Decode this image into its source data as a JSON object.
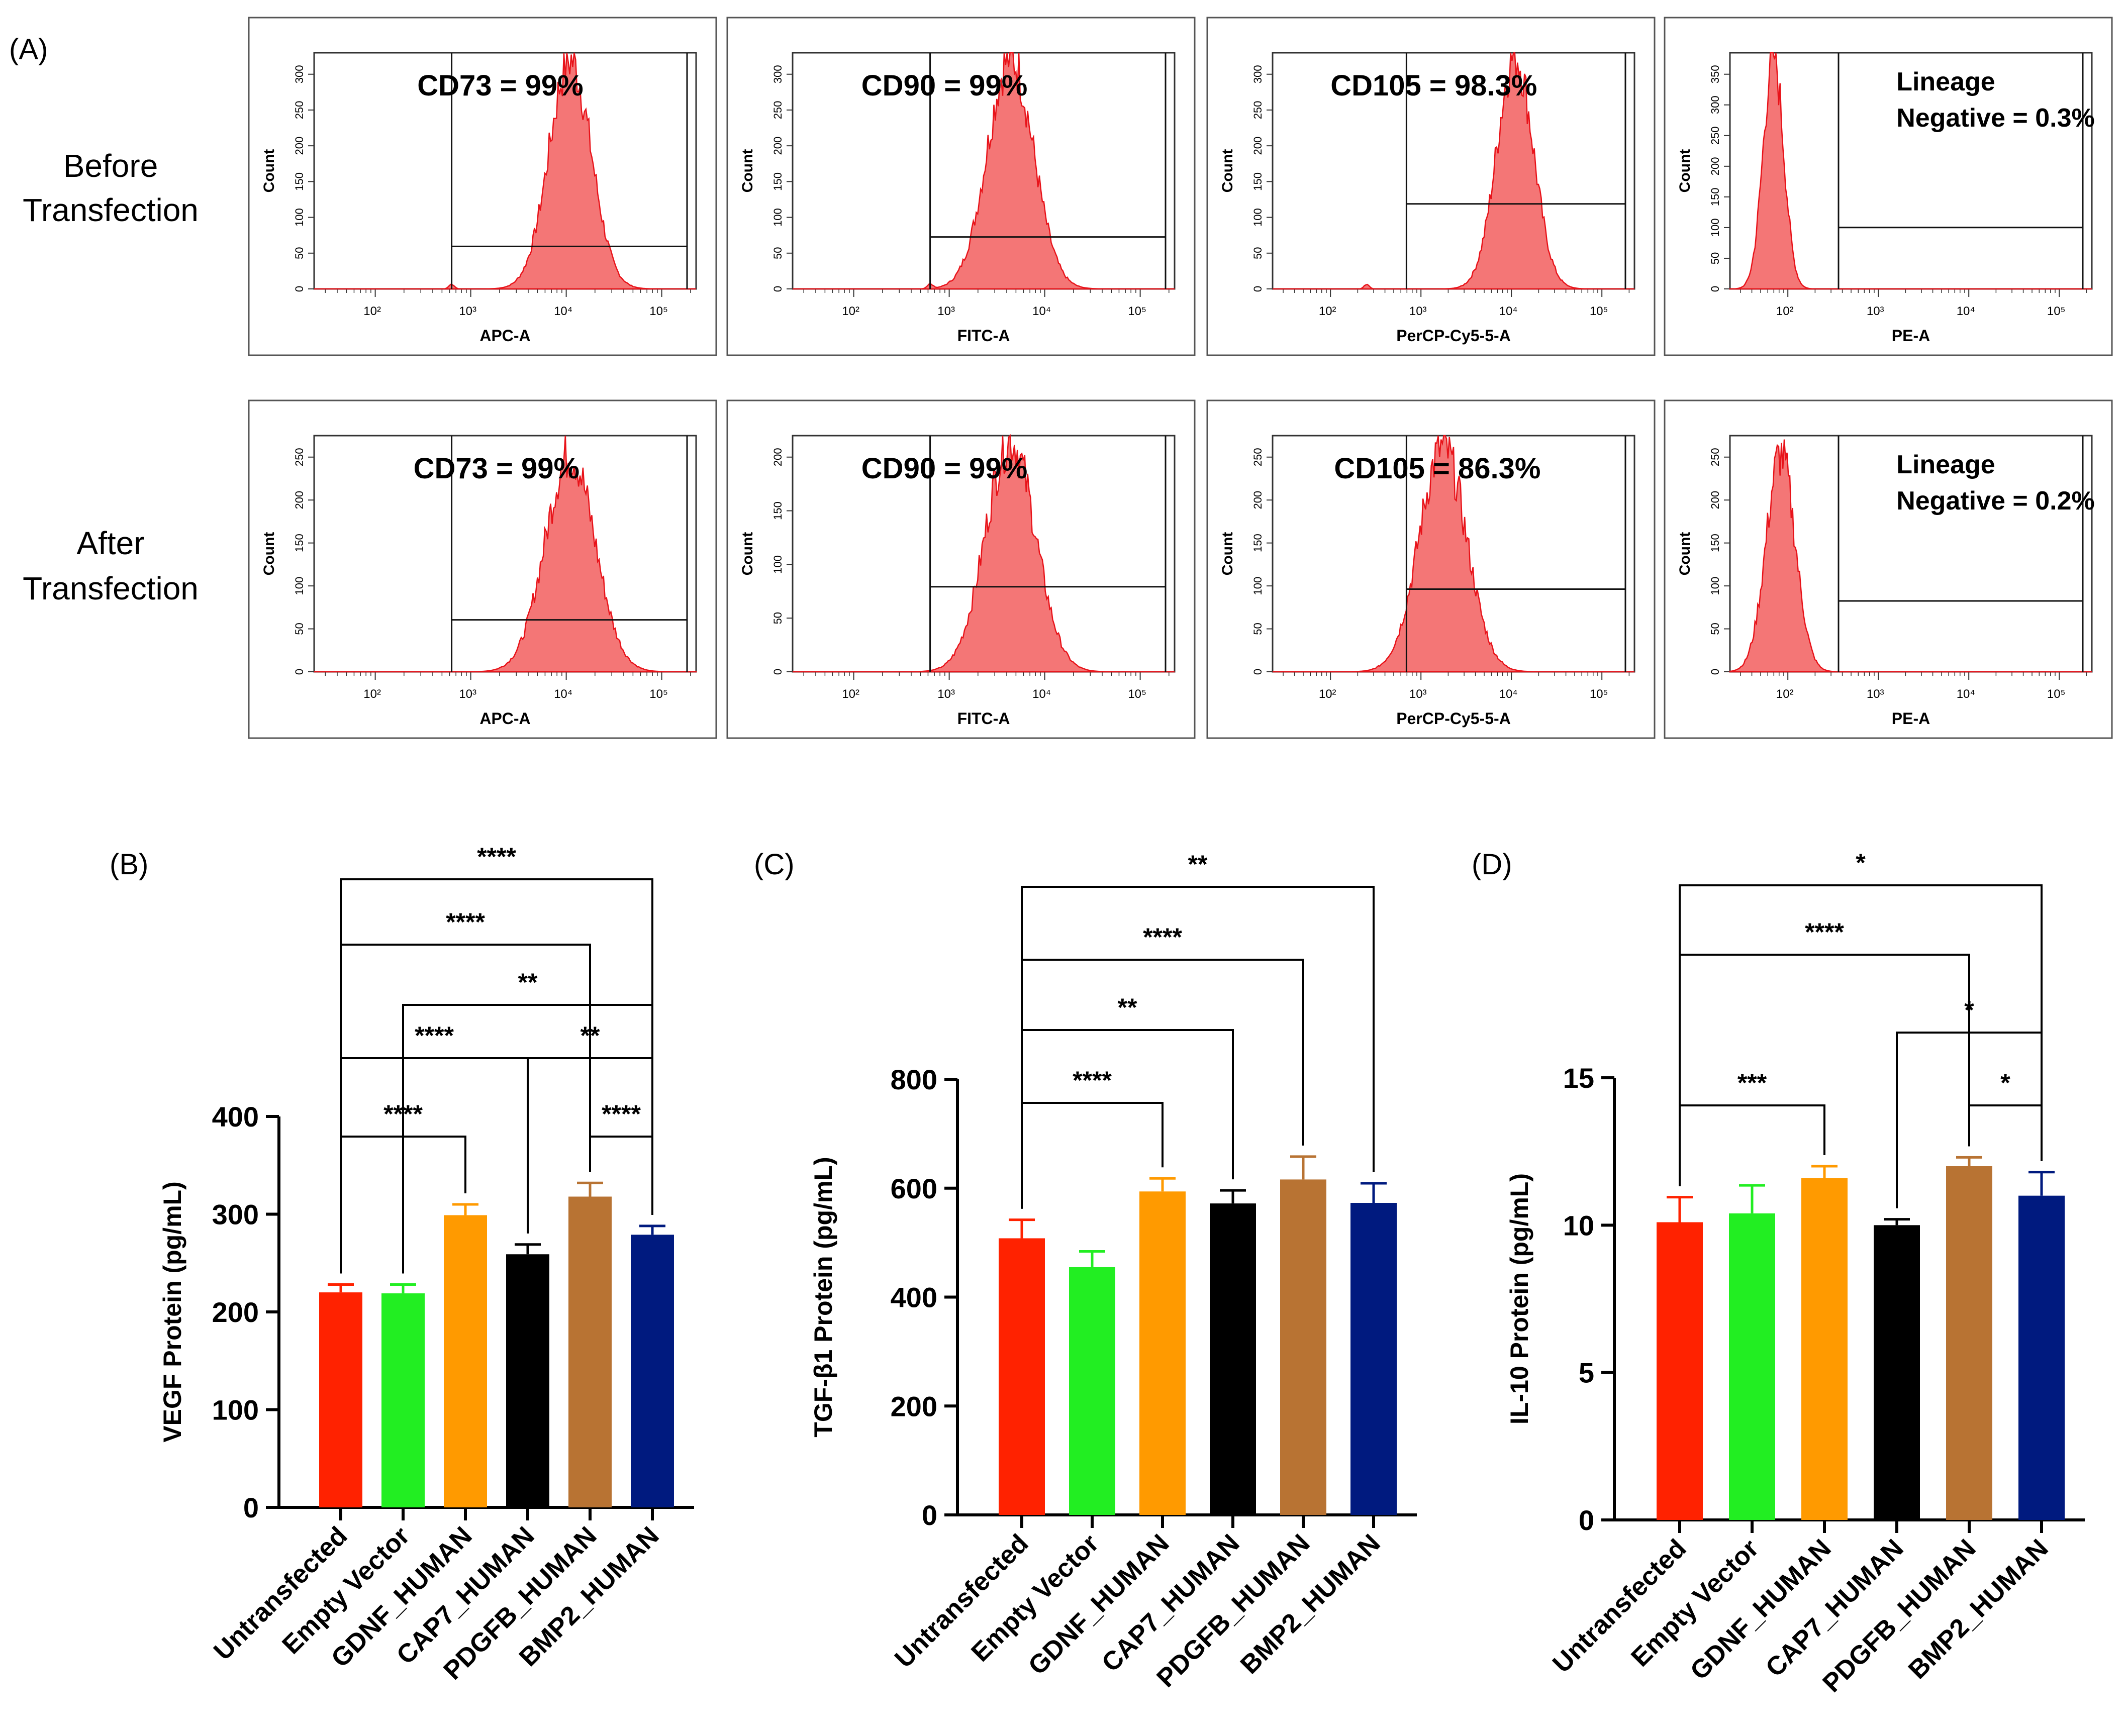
{
  "panel_a": {
    "label": "(A)",
    "row_labels": [
      [
        "Before",
        "Transfection"
      ],
      [
        "After",
        "Transfection"
      ]
    ],
    "y_axis_label": "Count",
    "x_tick_labels": [
      "10²",
      "10³",
      "10⁴",
      "10⁵"
    ],
    "channels": [
      "APC-A",
      "FITC-A",
      "PerCP-Cy5-5-A",
      "PE-A"
    ],
    "annotations": [
      [
        "CD73 = 99%",
        "CD90 = 99%",
        "CD105 = 98.3%",
        [
          "Lineage",
          "Negative = 0.3%"
        ]
      ],
      [
        "CD73 = 99%",
        "CD90 = 99%",
        "CD105 = 86.3%",
        [
          "Lineage",
          "Negative = 0.2%"
        ]
      ]
    ],
    "y_ticks": [
      [
        [
          0,
          50,
          100,
          150,
          200,
          250,
          300
        ],
        [
          0,
          50,
          100,
          150,
          200,
          250,
          300
        ],
        [
          0,
          50,
          100,
          150,
          200,
          250,
          300
        ],
        [
          0,
          50,
          100,
          150,
          200,
          250,
          300,
          350
        ]
      ],
      [
        [
          0,
          50,
          100,
          150,
          200,
          250
        ],
        [
          0,
          50,
          100,
          150,
          200
        ],
        [
          0,
          50,
          100,
          150,
          200,
          250
        ],
        [
          0,
          50,
          100,
          150,
          200,
          250
        ]
      ]
    ]
  },
  "colors": {
    "histogram_fill": "#f47676",
    "histogram_stroke": "#e8131a",
    "bars": [
      "#ff2200",
      "#22ee22",
      "#ff9a00",
      "#000000",
      "#b87333",
      "#001a7f"
    ]
  },
  "chart_data": [
    {
      "type": "bar",
      "panel_label": "(B)",
      "title": "",
      "xlabel": "",
      "ylabel": "VEGF Protein (pg/mL)",
      "categories": [
        "Untransfected",
        "Empty Vector",
        "GDNF_HUMAN",
        "CAP7_HUMAN",
        "PDGFB_HUMAN",
        "BMP2_HUMAN"
      ],
      "values": [
        220,
        219,
        299,
        259,
        318,
        279
      ],
      "errors": [
        8,
        9,
        11,
        10,
        14,
        9
      ],
      "ylim": [
        0,
        400
      ],
      "yticks": [
        0,
        100,
        200,
        300,
        400
      ],
      "significance": [
        {
          "from": 0,
          "to": 2,
          "label": "****"
        },
        {
          "from": 0,
          "to": 3,
          "label": "****"
        },
        {
          "from": 3,
          "to": 5,
          "label": "**"
        },
        {
          "from": 4,
          "to": 5,
          "label": "****"
        },
        {
          "from": 1,
          "to": 5,
          "label": "**"
        },
        {
          "from": 0,
          "to": 4,
          "label": "****"
        },
        {
          "from": 0,
          "to": 5,
          "label": "****"
        }
      ]
    },
    {
      "type": "bar",
      "panel_label": "(C)",
      "title": "",
      "xlabel": "",
      "ylabel": "TGF-β1 Protein (pg/mL)",
      "categories": [
        "Untransfected",
        "Empty Vector",
        "GDNF_HUMAN",
        "CAP7_HUMAN",
        "PDGFB_HUMAN",
        "BMP2_HUMAN"
      ],
      "values": [
        508,
        455,
        594,
        572,
        616,
        573
      ],
      "errors": [
        34,
        29,
        24,
        24,
        42,
        36
      ],
      "ylim": [
        0,
        800
      ],
      "yticks": [
        0,
        200,
        400,
        600,
        800
      ],
      "significance": [
        {
          "from": 0,
          "to": 2,
          "label": "****"
        },
        {
          "from": 0,
          "to": 3,
          "label": "**"
        },
        {
          "from": 0,
          "to": 4,
          "label": "****"
        },
        {
          "from": 0,
          "to": 5,
          "label": "**"
        }
      ]
    },
    {
      "type": "bar",
      "panel_label": "(D)",
      "title": "",
      "xlabel": "",
      "ylabel": "IL-10 Protein (pg/mL)",
      "categories": [
        "Untransfected",
        "Empty Vector",
        "GDNF_HUMAN",
        "CAP7_HUMAN",
        "PDGFB_HUMAN",
        "BMP2_HUMAN"
      ],
      "values": [
        10.1,
        10.4,
        11.6,
        10.0,
        12.0,
        11.0
      ],
      "errors": [
        0.85,
        0.95,
        0.4,
        0.2,
        0.3,
        0.8
      ],
      "ylim": [
        0,
        15
      ],
      "yticks": [
        0,
        5,
        10,
        15
      ],
      "significance": [
        {
          "from": 0,
          "to": 2,
          "label": "***"
        },
        {
          "from": 4,
          "to": 5,
          "label": "*"
        },
        {
          "from": 3,
          "to": 5,
          "label": "*"
        },
        {
          "from": 0,
          "to": 4,
          "label": "****"
        },
        {
          "from": 0,
          "to": 5,
          "label": "*"
        }
      ]
    }
  ]
}
